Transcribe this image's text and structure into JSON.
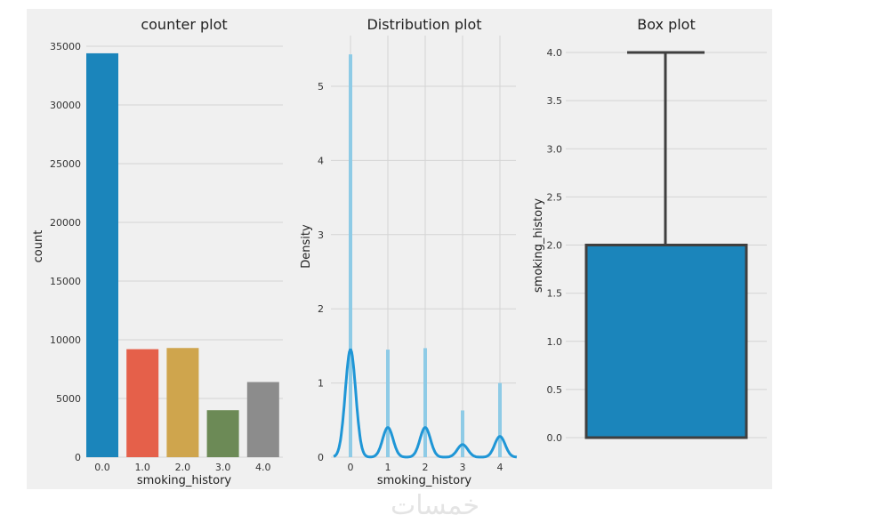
{
  "watermark": "خمسات",
  "colors": {
    "figure_bg": "#f0f0f0",
    "grid": "#d4d4d4",
    "kde": "#1f96d6",
    "hist": "#8ecbe6",
    "box": "#1b85bb",
    "box_edge": "#3f3f3f"
  },
  "chart_data": [
    {
      "type": "bar",
      "title": "counter plot",
      "xlabel": "smoking_history",
      "ylabel": "count",
      "categories": [
        "0.0",
        "1.0",
        "2.0",
        "3.0",
        "4.0"
      ],
      "values": [
        34400,
        9200,
        9300,
        4000,
        6400
      ],
      "colors": [
        "#1b85bb",
        "#e5604a",
        "#cfa54d",
        "#6c8a56",
        "#8c8c8c"
      ],
      "ylim": [
        0,
        35000
      ],
      "yticks": [
        0,
        5000,
        10000,
        15000,
        20000,
        25000,
        30000,
        35000
      ],
      "grid": "horizontal"
    },
    {
      "type": "histogram+kde",
      "title": "Distribution plot",
      "xlabel": "smoking_history",
      "ylabel": "Density",
      "xticks": [
        0,
        1,
        2,
        3,
        4
      ],
      "yticks": [
        0,
        1,
        2,
        3,
        4,
        5
      ],
      "xlim": [
        -0.5,
        4.5
      ],
      "ylim": [
        0,
        5.6
      ],
      "hist": {
        "x": [
          0,
          1,
          2,
          3,
          4
        ],
        "density": [
          5.43,
          1.45,
          1.47,
          0.63,
          1.0
        ]
      },
      "kde_peaks": {
        "x": [
          0,
          1,
          2,
          3,
          4
        ],
        "density": [
          1.45,
          0.4,
          0.4,
          0.17,
          0.28
        ]
      },
      "grid": "both"
    },
    {
      "type": "box",
      "title": "Box plot",
      "ylabel": "smoking_history",
      "ylim": [
        -0.1,
        4.2
      ],
      "yticks": [
        "0.0",
        "0.5",
        "1.0",
        "1.5",
        "2.0",
        "2.5",
        "3.0",
        "3.5",
        "4.0"
      ],
      "stats": {
        "min": 0,
        "q1": 0,
        "median": 0,
        "q3": 2,
        "max": 4
      },
      "grid": "horizontal"
    }
  ]
}
